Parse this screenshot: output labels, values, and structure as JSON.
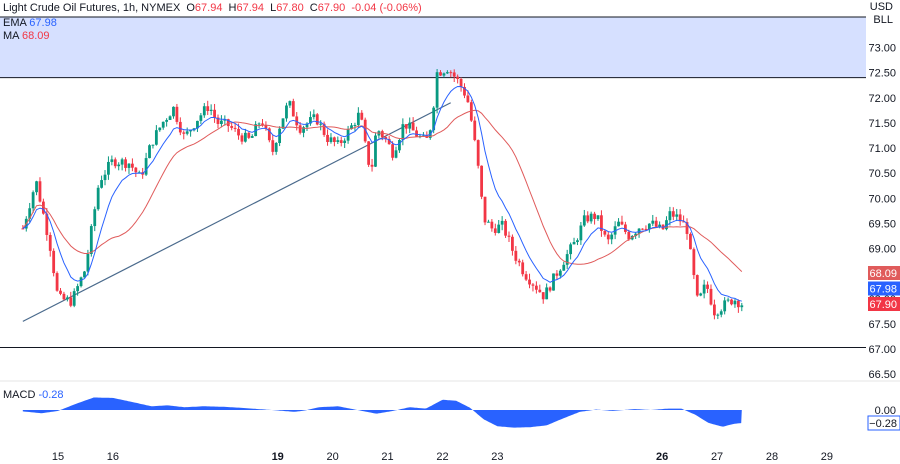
{
  "header": {
    "title": "Light Crude Oil Futures, 1h, NYMEX",
    "o_label": "O",
    "o_value": "67.94",
    "h_label": "H",
    "h_value": "67.94",
    "l_label": "L",
    "l_value": "67.80",
    "c_label": "C",
    "c_value": "67.90",
    "change": "-0.04 (-0.06%)"
  },
  "legend": {
    "ema_label": "EMA",
    "ema_value": "67.98",
    "ma_label": "MA",
    "ma_value": "68.09",
    "macd_label": "MACD",
    "macd_value": "-0.28"
  },
  "axis": {
    "currency": "USD",
    "unit": "BLL"
  },
  "colors": {
    "up": "#089981",
    "down": "#f23645",
    "ema": "#2962ff",
    "ma": "#e05b5b",
    "macd": "#2962ff",
    "zone": "#d6e0ff",
    "trendline": "#4a6a8c",
    "support": "#131722"
  },
  "chart_data": {
    "type": "candlestick",
    "price_ylim": [
      66.5,
      73.5
    ],
    "price_ticks": [
      66.5,
      67.0,
      67.5,
      68.0,
      68.5,
      69.0,
      69.5,
      70.0,
      70.5,
      71.0,
      71.5,
      72.0,
      72.5,
      73.0
    ],
    "price_tick_labels": [
      "66.50",
      "67.00",
      "67.50",
      "68.00",
      "68.50",
      "69.00",
      "69.50",
      "70.00",
      "70.50",
      "71.00",
      "71.50",
      "72.00",
      "72.50",
      "73.00"
    ],
    "x_range": [
      14.36,
      29.5
    ],
    "x_ticks": [
      {
        "x": 15,
        "label": "15",
        "bold": false
      },
      {
        "x": 16,
        "label": "16",
        "bold": false
      },
      {
        "x": 19,
        "label": "19",
        "bold": true
      },
      {
        "x": 20,
        "label": "20",
        "bold": false
      },
      {
        "x": 21,
        "label": "21",
        "bold": false
      },
      {
        "x": 22,
        "label": "22",
        "bold": false
      },
      {
        "x": 23,
        "label": "23",
        "bold": false
      },
      {
        "x": 26,
        "label": "26",
        "bold": true
      },
      {
        "x": 27,
        "label": "27",
        "bold": false
      },
      {
        "x": 28,
        "label": "28",
        "bold": false
      },
      {
        "x": 29,
        "label": "29",
        "bold": false
      }
    ],
    "price_keypoints": [
      [
        14.36,
        69.4
      ],
      [
        14.6,
        70.35
      ],
      [
        14.85,
        69.1
      ],
      [
        15.0,
        68.0
      ],
      [
        15.25,
        67.95
      ],
      [
        15.5,
        68.6
      ],
      [
        15.75,
        70.35
      ],
      [
        16.0,
        70.75
      ],
      [
        16.3,
        70.7
      ],
      [
        16.5,
        70.4
      ],
      [
        16.7,
        71.1
      ],
      [
        16.9,
        71.5
      ],
      [
        17.1,
        71.8
      ],
      [
        17.3,
        71.2
      ],
      [
        17.55,
        71.6
      ],
      [
        17.75,
        71.85
      ],
      [
        17.9,
        71.5
      ],
      [
        18.1,
        71.45
      ],
      [
        18.3,
        71.25
      ],
      [
        18.5,
        71.15
      ],
      [
        18.7,
        71.6
      ],
      [
        18.9,
        70.9
      ],
      [
        19.05,
        71.5
      ],
      [
        19.2,
        71.9
      ],
      [
        19.4,
        71.4
      ],
      [
        19.7,
        71.6
      ],
      [
        19.9,
        71.2
      ],
      [
        20.1,
        71.05
      ],
      [
        20.3,
        71.35
      ],
      [
        20.5,
        71.7
      ],
      [
        20.6,
        71.0
      ],
      [
        20.7,
        70.5
      ],
      [
        20.8,
        71.4
      ],
      [
        20.95,
        71.2
      ],
      [
        21.1,
        70.9
      ],
      [
        21.3,
        71.5
      ],
      [
        21.5,
        71.3
      ],
      [
        21.7,
        71.1
      ],
      [
        21.8,
        71.5
      ],
      [
        21.9,
        72.5
      ],
      [
        22.1,
        72.6
      ],
      [
        22.3,
        72.3
      ],
      [
        22.45,
        72.0
      ],
      [
        22.55,
        71.4
      ],
      [
        22.65,
        70.6
      ],
      [
        22.75,
        69.6
      ],
      [
        22.9,
        69.4
      ],
      [
        23.1,
        69.45
      ],
      [
        23.3,
        68.9
      ],
      [
        23.5,
        68.5
      ],
      [
        23.7,
        68.25
      ],
      [
        23.85,
        68.05
      ],
      [
        24.0,
        68.35
      ],
      [
        24.2,
        68.75
      ],
      [
        24.4,
        69.1
      ],
      [
        24.6,
        69.6
      ],
      [
        24.8,
        69.65
      ],
      [
        25.0,
        69.1
      ],
      [
        25.2,
        69.5
      ],
      [
        25.4,
        69.25
      ],
      [
        25.6,
        69.45
      ],
      [
        25.8,
        69.5
      ],
      [
        26.0,
        69.35
      ],
      [
        26.15,
        69.7
      ],
      [
        26.3,
        69.6
      ],
      [
        26.45,
        69.4
      ],
      [
        26.55,
        68.6
      ],
      [
        26.65,
        67.9
      ],
      [
        26.8,
        68.3
      ],
      [
        26.95,
        67.75
      ],
      [
        27.1,
        67.85
      ],
      [
        27.3,
        68.0
      ],
      [
        27.45,
        67.9
      ]
    ],
    "price_candle_start_hour": 1000,
    "price_seed": 7,
    "zone_range": [
      72.4,
      73.5
    ],
    "trendline": {
      "from": [
        14.36,
        67.55
      ],
      "to": [
        22.15,
        71.9
      ]
    },
    "support_level": 67.03,
    "last_values": {
      "ma": 68.09,
      "ema": 67.98,
      "close": 67.9
    },
    "macd_ylim": [
      -0.45,
      0.35
    ],
    "macd_ticks": [
      {
        "v": 0.0,
        "label": "0.00"
      },
      {
        "v": -0.28,
        "label": "−0.28"
      }
    ],
    "macd_keypoints": [
      [
        14.36,
        -0.03
      ],
      [
        14.7,
        -0.07
      ],
      [
        15.0,
        -0.02
      ],
      [
        15.3,
        0.12
      ],
      [
        15.65,
        0.27
      ],
      [
        16.0,
        0.26
      ],
      [
        16.4,
        0.16
      ],
      [
        16.7,
        0.08
      ],
      [
        17.0,
        0.1
      ],
      [
        17.3,
        0.06
      ],
      [
        17.65,
        0.08
      ],
      [
        18.0,
        0.07
      ],
      [
        18.3,
        0.05
      ],
      [
        18.65,
        0.02
      ],
      [
        19.0,
        -0.01
      ],
      [
        19.3,
        -0.04
      ],
      [
        19.5,
        -0.01
      ],
      [
        19.75,
        0.06
      ],
      [
        20.1,
        0.08
      ],
      [
        20.45,
        0.0
      ],
      [
        20.8,
        -0.08
      ],
      [
        21.1,
        -0.02
      ],
      [
        21.4,
        0.06
      ],
      [
        21.7,
        0.03
      ],
      [
        22.0,
        0.22
      ],
      [
        22.25,
        0.2
      ],
      [
        22.5,
        0.05
      ],
      [
        22.75,
        -0.2
      ],
      [
        23.0,
        -0.35
      ],
      [
        23.3,
        -0.38
      ],
      [
        23.6,
        -0.37
      ],
      [
        23.9,
        -0.33
      ],
      [
        24.2,
        -0.18
      ],
      [
        24.5,
        -0.04
      ],
      [
        24.8,
        0.01
      ],
      [
        25.1,
        -0.02
      ],
      [
        25.5,
        0.02
      ],
      [
        25.8,
        0.0
      ],
      [
        26.1,
        0.03
      ],
      [
        26.35,
        0.03
      ],
      [
        26.6,
        -0.1
      ],
      [
        26.85,
        -0.28
      ],
      [
        27.1,
        -0.36
      ],
      [
        27.3,
        -0.3
      ],
      [
        27.45,
        -0.28
      ]
    ]
  }
}
